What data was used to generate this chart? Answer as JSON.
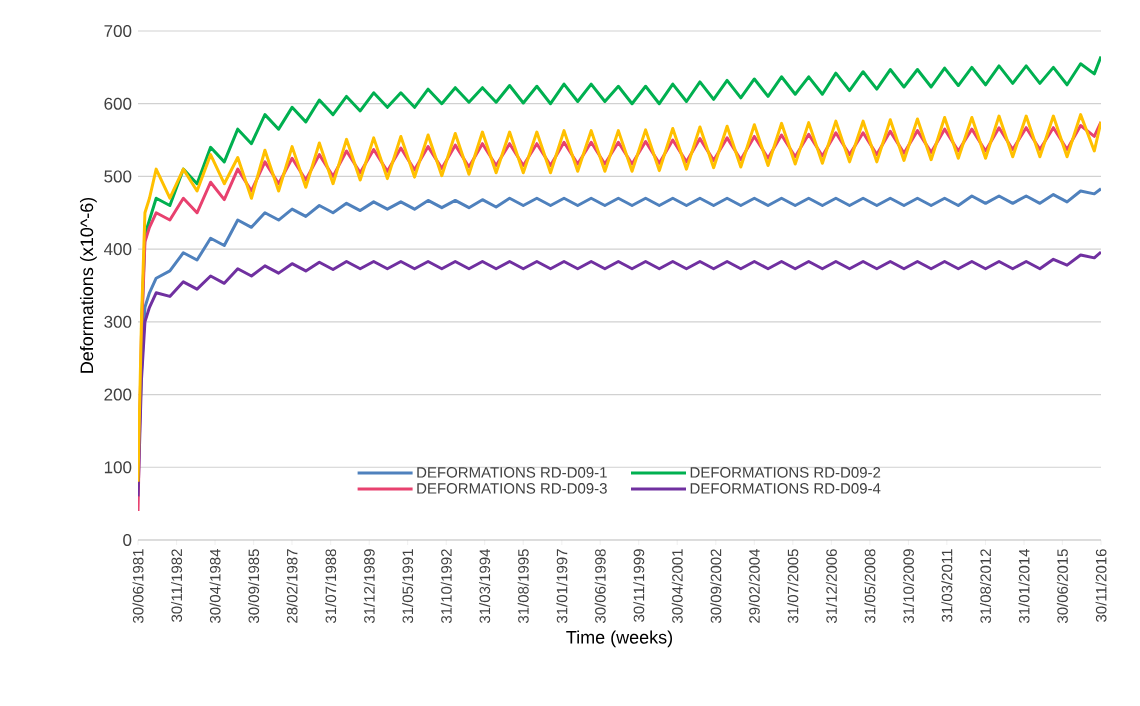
{
  "chart_data": {
    "type": "line",
    "xlabel": "Time (weeks)",
    "ylabel": "Deformations (x10^-6)",
    "x": [
      "1981-06-30",
      "1981-08-15",
      "1981-10-01",
      "1981-12-01",
      "1982-03-01",
      "1982-09-01",
      "1983-03-01",
      "1983-09-01",
      "1984-03-01",
      "1984-09-01",
      "1985-03-01",
      "1985-09-01",
      "1986-03-01",
      "1986-09-01",
      "1987-03-01",
      "1987-09-01",
      "1988-03-01",
      "1988-09-01",
      "1989-03-01",
      "1989-09-01",
      "1990-03-01",
      "1990-09-01",
      "1991-03-01",
      "1991-09-01",
      "1992-03-01",
      "1992-09-01",
      "1993-03-01",
      "1993-09-01",
      "1994-03-01",
      "1994-09-01",
      "1995-03-01",
      "1995-09-01",
      "1996-03-01",
      "1996-09-01",
      "1997-03-01",
      "1997-09-01",
      "1998-03-01",
      "1998-09-01",
      "1999-03-01",
      "1999-09-01",
      "2000-03-01",
      "2000-09-01",
      "2001-03-01",
      "2001-09-01",
      "2002-03-01",
      "2002-09-01",
      "2003-03-01",
      "2003-09-01",
      "2004-03-01",
      "2004-09-01",
      "2005-03-01",
      "2005-09-01",
      "2006-03-01",
      "2006-09-01",
      "2007-03-01",
      "2007-09-01",
      "2008-03-01",
      "2008-09-01",
      "2009-03-01",
      "2009-09-01",
      "2010-03-01",
      "2010-09-01",
      "2011-03-01",
      "2011-09-01",
      "2012-03-01",
      "2012-09-01",
      "2013-03-01",
      "2013-09-01",
      "2014-03-01",
      "2014-09-01",
      "2015-03-01",
      "2015-09-01",
      "2016-03-01",
      "2016-09-01",
      "2016-11-30"
    ],
    "series": [
      {
        "name": "DEFORMATIONS RD-D09-1",
        "color": "#4f81bd",
        "values": [
          100,
          230,
          320,
          340,
          360,
          370,
          395,
          385,
          415,
          405,
          440,
          430,
          450,
          440,
          455,
          445,
          460,
          450,
          463,
          453,
          465,
          455,
          465,
          455,
          467,
          457,
          467,
          457,
          468,
          458,
          470,
          460,
          470,
          460,
          470,
          460,
          470,
          460,
          470,
          460,
          470,
          460,
          470,
          460,
          470,
          460,
          470,
          460,
          470,
          460,
          470,
          460,
          470,
          460,
          470,
          460,
          470,
          460,
          470,
          460,
          470,
          460,
          470,
          460,
          473,
          463,
          473,
          463,
          473,
          463,
          475,
          465,
          480,
          476,
          483
        ]
      },
      {
        "name": "DEFORMATIONS RD-D09-2",
        "color": "#00b050",
        "values": [
          null,
          290,
          420,
          440,
          470,
          460,
          510,
          490,
          540,
          520,
          565,
          545,
          585,
          565,
          595,
          575,
          605,
          585,
          610,
          590,
          615,
          595,
          615,
          595,
          620,
          600,
          622,
          602,
          622,
          602,
          625,
          601,
          624,
          600,
          627,
          603,
          627,
          603,
          624,
          600,
          624,
          600,
          627,
          603,
          630,
          606,
          632,
          608,
          634,
          610,
          637,
          613,
          637,
          613,
          642,
          618,
          644,
          620,
          647,
          623,
          647,
          623,
          649,
          625,
          650,
          626,
          652,
          628,
          652,
          628,
          650,
          626,
          655,
          641,
          665
        ]
      },
      {
        "name": "DEFORMATIONS RD-D09-3",
        "color": "#e8416f",
        "values": [
          40,
          280,
          410,
          430,
          450,
          440,
          470,
          450,
          492,
          468,
          510,
          480,
          520,
          490,
          525,
          495,
          530,
          500,
          535,
          505,
          537,
          507,
          539,
          509,
          541,
          511,
          543,
          513,
          545,
          515,
          545,
          515,
          545,
          515,
          547,
          517,
          547,
          517,
          547,
          517,
          548,
          518,
          550,
          520,
          552,
          522,
          553,
          523,
          555,
          525,
          557,
          527,
          558,
          528,
          560,
          530,
          560,
          530,
          562,
          532,
          563,
          533,
          565,
          535,
          565,
          535,
          567,
          537,
          567,
          537,
          567,
          537,
          570,
          555,
          575
        ]
      },
      {
        "name": "DEFORMATIONS RD-D09-4",
        "color": "#7030a0",
        "values": [
          60,
          220,
          300,
          320,
          340,
          335,
          355,
          345,
          363,
          353,
          373,
          363,
          377,
          367,
          380,
          370,
          382,
          372,
          383,
          373,
          383,
          373,
          383,
          373,
          383,
          373,
          383,
          373,
          383,
          373,
          383,
          373,
          383,
          373,
          383,
          373,
          383,
          373,
          383,
          373,
          383,
          373,
          383,
          373,
          383,
          373,
          383,
          373,
          383,
          373,
          383,
          373,
          383,
          373,
          383,
          373,
          383,
          373,
          383,
          373,
          383,
          373,
          383,
          373,
          383,
          373,
          383,
          373,
          383,
          373,
          386,
          378,
          392,
          388,
          396
        ]
      },
      {
        "color": "#ffc000",
        "values": [
          80,
          300,
          450,
          470,
          510,
          470,
          510,
          480,
          530,
          490,
          526,
          470,
          536,
          480,
          541,
          485,
          546,
          490,
          551,
          495,
          553,
          497,
          555,
          499,
          557,
          501,
          559,
          503,
          561,
          505,
          561,
          505,
          561,
          505,
          563,
          507,
          563,
          507,
          563,
          507,
          564,
          508,
          566,
          510,
          568,
          512,
          569,
          513,
          571,
          515,
          573,
          517,
          574,
          518,
          576,
          520,
          576,
          520,
          578,
          522,
          579,
          523,
          581,
          525,
          581,
          525,
          583,
          527,
          583,
          527,
          583,
          527,
          585,
          535,
          575
        ]
      }
    ],
    "xlim": [
      "1981-06-30",
      "2016-11-30"
    ],
    "xticks": [
      {
        "value": "1981-06-30",
        "label": "30/06/1981"
      },
      {
        "value": "1982-11-30",
        "label": "30/11/1982"
      },
      {
        "value": "1984-04-30",
        "label": "30/04/1984"
      },
      {
        "value": "1985-09-30",
        "label": "30/09/1985"
      },
      {
        "value": "1987-02-28",
        "label": "28/02/1987"
      },
      {
        "value": "1988-07-31",
        "label": "31/07/1988"
      },
      {
        "value": "1989-12-31",
        "label": "31/12/1989"
      },
      {
        "value": "1991-05-31",
        "label": "31/05/1991"
      },
      {
        "value": "1992-10-31",
        "label": "31/10/1992"
      },
      {
        "value": "1994-03-31",
        "label": "31/03/1994"
      },
      {
        "value": "1995-08-31",
        "label": "31/08/1995"
      },
      {
        "value": "1997-01-31",
        "label": "31/01/1997"
      },
      {
        "value": "1998-06-30",
        "label": "30/06/1998"
      },
      {
        "value": "1999-11-30",
        "label": "30/11/1999"
      },
      {
        "value": "2001-04-30",
        "label": "30/04/2001"
      },
      {
        "value": "2002-09-30",
        "label": "30/09/2002"
      },
      {
        "value": "2004-02-29",
        "label": "29/02/2004"
      },
      {
        "value": "2005-07-31",
        "label": "31/07/2005"
      },
      {
        "value": "2006-12-31",
        "label": "31/12/2006"
      },
      {
        "value": "2008-05-31",
        "label": "31/05/2008"
      },
      {
        "value": "2009-10-31",
        "label": "31/10/2009"
      },
      {
        "value": "2011-03-31",
        "label": "31/03/2011"
      },
      {
        "value": "2012-08-31",
        "label": "31/08/2012"
      },
      {
        "value": "2014-01-31",
        "label": "31/01/2014"
      },
      {
        "value": "2015-06-30",
        "label": "30/06/2015"
      },
      {
        "value": "2016-11-30",
        "label": "30/11/2016"
      }
    ],
    "ylim": [
      0,
      700
    ],
    "yticks": [
      0,
      100,
      200,
      300,
      400,
      500,
      600,
      700
    ],
    "grid": "y",
    "legend": "bottom",
    "marker": "none",
    "line_style": "solid"
  }
}
